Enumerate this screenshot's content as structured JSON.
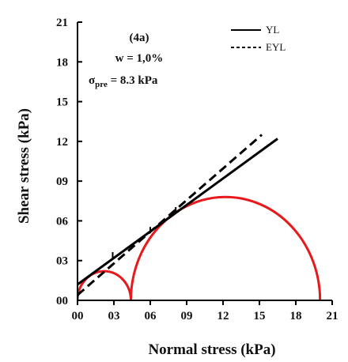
{
  "chart_data": {
    "type": "line",
    "title": "",
    "xlabel": "Normal stress (kPa)",
    "ylabel": "Shear stress (kPa)",
    "xlim": [
      0,
      21
    ],
    "ylim": [
      0,
      21
    ],
    "x_ticks": [
      0,
      3,
      6,
      9,
      12,
      15,
      18,
      21
    ],
    "x_tick_labels": [
      "00",
      "03",
      "06",
      "09",
      "12",
      "15",
      "18",
      "21"
    ],
    "y_ticks": [
      0,
      3,
      6,
      9,
      12,
      15,
      18,
      21
    ],
    "y_tick_labels": [
      "00",
      "03",
      "06",
      "09",
      "12",
      "15",
      "18",
      "21"
    ],
    "grid": false,
    "legend_position": "top-right",
    "annotations": {
      "label": "(4a)",
      "water": "w = 1,0%",
      "sigma_symbol": "σ",
      "sigma_sub": "pre",
      "sigma_value": " = 8.3 kPa"
    },
    "series": [
      {
        "name": "YL",
        "style": "solid",
        "color": "#000000",
        "x": [
          0,
          16.5
        ],
        "y": [
          1.2,
          12.2
        ]
      },
      {
        "name": "EYL",
        "style": "dashed",
        "color": "#000000",
        "x": [
          0,
          15.2
        ],
        "y": [
          0.4,
          12.5
        ]
      }
    ],
    "mohr_circles": [
      {
        "center": 2.2,
        "radius": 2.2,
        "color": "#e8191c"
      },
      {
        "center": 12.2,
        "radius": 7.8,
        "color": "#e8191c"
      }
    ],
    "markers": [
      {
        "x": 2.9,
        "y": 3.4
      },
      {
        "x": 6.0,
        "y": 5.3
      },
      {
        "x": 8.1,
        "y": 6.8
      }
    ]
  }
}
